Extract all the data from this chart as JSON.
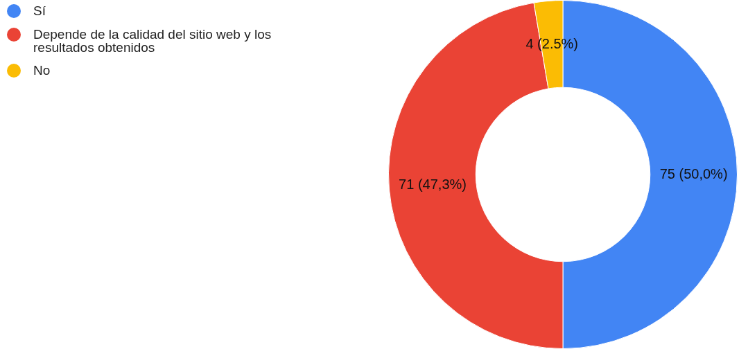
{
  "chart_data": {
    "type": "donut",
    "categories": [
      "Sí",
      "Depende de la calidad del sitio web y los resultados obtenidos",
      "No"
    ],
    "values": [
      75,
      71,
      4
    ],
    "colors": [
      "#4285f4",
      "#ea4335",
      "#fbbc04"
    ],
    "value_labels": [
      "75 (50,0%)",
      "71 (47,3%)",
      "4 (2.5%)"
    ],
    "legend": "top left"
  }
}
